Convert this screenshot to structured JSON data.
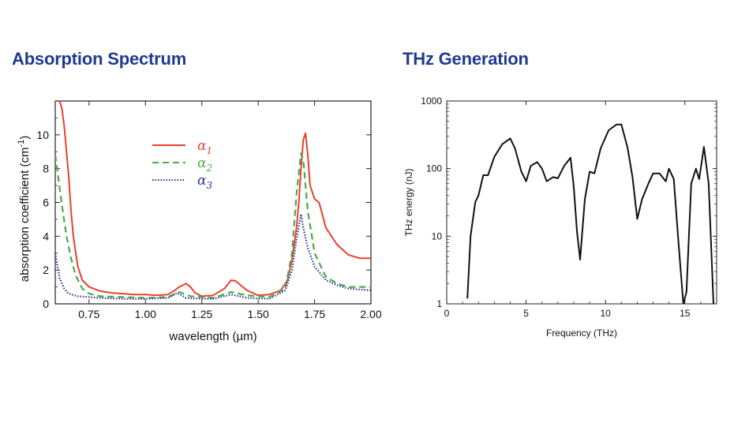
{
  "headings": {
    "left": "Absorption Spectrum",
    "right": "THz Generation"
  },
  "chart_data": [
    {
      "type": "line",
      "title": "Absorption Spectrum",
      "xlabel": "wavelength (µm)",
      "ylabel": "absorption coefficient (cm",
      "ylabel_sup": "-1",
      "ylabel_close": ")",
      "xlim": [
        0.6,
        2.0
      ],
      "ylim": [
        0,
        12
      ],
      "xticks": [
        0.75,
        1.0,
        1.25,
        1.5,
        1.75,
        2.0
      ],
      "xtick_labels": [
        "0.75",
        "1.00",
        "1.25",
        "1.50",
        "1.75",
        "2.00"
      ],
      "yticks": [
        0,
        2,
        4,
        6,
        8,
        10
      ],
      "ytick_labels": [
        "0",
        "2",
        "4",
        "6",
        "8",
        "10"
      ],
      "legend_position": "upper-center",
      "series": [
        {
          "name": "α",
          "sub": "1",
          "color": "#e8412f",
          "style": "solid",
          "x": [
            0.6,
            0.62,
            0.63,
            0.64,
            0.65,
            0.66,
            0.67,
            0.68,
            0.7,
            0.72,
            0.75,
            0.8,
            0.85,
            0.9,
            0.95,
            1.0,
            1.05,
            1.1,
            1.13,
            1.15,
            1.18,
            1.2,
            1.22,
            1.25,
            1.3,
            1.35,
            1.38,
            1.4,
            1.45,
            1.5,
            1.55,
            1.6,
            1.63,
            1.65,
            1.67,
            1.68,
            1.69,
            1.7,
            1.71,
            1.72,
            1.73,
            1.75,
            1.77,
            1.8,
            1.85,
            1.9,
            1.95,
            2.0
          ],
          "values": [
            12,
            12,
            11.5,
            10.5,
            9,
            7.5,
            5.5,
            4,
            2.2,
            1.4,
            1.0,
            0.75,
            0.65,
            0.6,
            0.55,
            0.55,
            0.5,
            0.55,
            0.8,
            1.0,
            1.2,
            1.0,
            0.65,
            0.45,
            0.5,
            0.9,
            1.4,
            1.35,
            0.8,
            0.5,
            0.55,
            0.8,
            1.4,
            2.6,
            4.5,
            6.0,
            8.0,
            9.7,
            10.1,
            8.8,
            7.0,
            6.2,
            6.0,
            4.5,
            3.5,
            2.9,
            2.7,
            2.7
          ]
        },
        {
          "name": "α",
          "sub": "2",
          "color": "#4ca84a",
          "style": "dashed",
          "x": [
            0.6,
            0.61,
            0.62,
            0.63,
            0.64,
            0.65,
            0.67,
            0.69,
            0.72,
            0.75,
            0.8,
            0.9,
            1.0,
            1.1,
            1.15,
            1.2,
            1.3,
            1.38,
            1.45,
            1.55,
            1.62,
            1.65,
            1.67,
            1.69,
            1.7,
            1.72,
            1.75,
            1.8,
            1.85,
            1.9,
            2.0
          ],
          "values": [
            8.8,
            7.8,
            6.8,
            5.8,
            4.9,
            4.0,
            2.7,
            1.7,
            0.9,
            0.6,
            0.45,
            0.4,
            0.35,
            0.4,
            0.7,
            0.45,
            0.35,
            0.7,
            0.5,
            0.4,
            0.9,
            3.0,
            6.5,
            8.9,
            8.5,
            5.5,
            3.0,
            1.6,
            1.2,
            1.0,
            1.0
          ]
        },
        {
          "name": "α",
          "sub": "3",
          "color": "#2a3593",
          "style": "dotted",
          "x": [
            0.6,
            0.61,
            0.62,
            0.64,
            0.66,
            0.7,
            0.75,
            0.8,
            0.9,
            1.0,
            1.1,
            1.14,
            1.18,
            1.25,
            1.3,
            1.38,
            1.45,
            1.55,
            1.62,
            1.65,
            1.67,
            1.68,
            1.69,
            1.7,
            1.72,
            1.75,
            1.8,
            1.85,
            1.9,
            2.0
          ],
          "values": [
            3.0,
            2.2,
            1.5,
            0.9,
            0.6,
            0.45,
            0.4,
            0.35,
            0.3,
            0.3,
            0.35,
            0.65,
            0.35,
            0.3,
            0.3,
            0.55,
            0.35,
            0.3,
            0.8,
            2.0,
            3.8,
            4.6,
            5.3,
            4.5,
            3.3,
            2.2,
            1.4,
            1.1,
            0.9,
            0.8
          ]
        }
      ]
    },
    {
      "type": "line",
      "title": "THz Generation",
      "xlabel": "Frequency (THz)",
      "ylabel": "THz energy (nJ)",
      "xlim": [
        0,
        17
      ],
      "yscale": "log",
      "ylim": [
        1,
        1000
      ],
      "xticks": [
        0,
        5,
        10,
        15
      ],
      "xtick_labels": [
        "0",
        "5",
        "10",
        "15"
      ],
      "yticks": [
        1,
        10,
        100,
        1000
      ],
      "ytick_labels": [
        "1",
        "10",
        "100",
        "1000"
      ],
      "series": [
        {
          "color": "#111111",
          "style": "solid",
          "x": [
            1.3,
            1.5,
            1.8,
            2.0,
            2.3,
            2.6,
            3.0,
            3.5,
            4.0,
            4.3,
            4.7,
            5.0,
            5.3,
            5.7,
            6.0,
            6.3,
            6.7,
            7.0,
            7.4,
            7.8,
            8.0,
            8.2,
            8.4,
            8.7,
            9.0,
            9.3,
            9.7,
            10.2,
            10.7,
            11.0,
            11.4,
            11.7,
            12.0,
            12.3,
            12.7,
            13.0,
            13.4,
            13.8,
            14.0,
            14.3,
            14.6,
            14.9,
            15.1,
            15.4,
            15.7,
            15.9,
            16.2,
            16.5,
            16.8
          ],
          "values": [
            1.2,
            10,
            32,
            40,
            80,
            80,
            150,
            230,
            280,
            200,
            90,
            65,
            110,
            125,
            100,
            65,
            75,
            72,
            110,
            145,
            55,
            12,
            4.5,
            35,
            90,
            85,
            200,
            370,
            450,
            450,
            200,
            75,
            18,
            35,
            60,
            85,
            85,
            65,
            100,
            70,
            8,
            1,
            1.5,
            60,
            100,
            70,
            210,
            60,
            1
          ]
        }
      ]
    }
  ]
}
